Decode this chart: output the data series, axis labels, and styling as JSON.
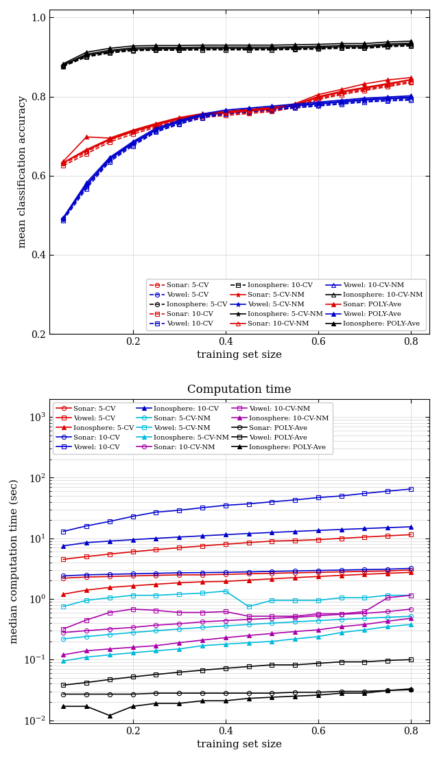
{
  "x": [
    0.05,
    0.1,
    0.15,
    0.2,
    0.25,
    0.3,
    0.35,
    0.4,
    0.45,
    0.5,
    0.55,
    0.6,
    0.65,
    0.7,
    0.75,
    0.8
  ],
  "acc": {
    "sonar_5cv": [
      0.63,
      0.66,
      0.69,
      0.71,
      0.725,
      0.74,
      0.75,
      0.755,
      0.76,
      0.765,
      0.775,
      0.795,
      0.808,
      0.818,
      0.828,
      0.838
    ],
    "sonar_10cv": [
      0.625,
      0.655,
      0.685,
      0.705,
      0.722,
      0.737,
      0.747,
      0.752,
      0.757,
      0.762,
      0.772,
      0.792,
      0.805,
      0.815,
      0.825,
      0.835
    ],
    "sonar_5cvnm": [
      0.633,
      0.663,
      0.691,
      0.711,
      0.728,
      0.743,
      0.753,
      0.758,
      0.763,
      0.768,
      0.778,
      0.798,
      0.811,
      0.821,
      0.831,
      0.842
    ],
    "sonar_10cvnm": [
      0.633,
      0.666,
      0.693,
      0.713,
      0.73,
      0.745,
      0.755,
      0.76,
      0.765,
      0.77,
      0.78,
      0.8,
      0.813,
      0.823,
      0.833,
      0.843
    ],
    "sonar_poly": [
      0.636,
      0.698,
      0.695,
      0.715,
      0.732,
      0.747,
      0.757,
      0.762,
      0.767,
      0.772,
      0.782,
      0.805,
      0.818,
      0.832,
      0.842,
      0.848
    ],
    "vowel_5cv": [
      0.49,
      0.572,
      0.638,
      0.678,
      0.712,
      0.732,
      0.748,
      0.758,
      0.763,
      0.768,
      0.773,
      0.778,
      0.783,
      0.788,
      0.791,
      0.794
    ],
    "vowel_10cv": [
      0.487,
      0.567,
      0.635,
      0.675,
      0.71,
      0.73,
      0.746,
      0.756,
      0.761,
      0.766,
      0.771,
      0.776,
      0.781,
      0.786,
      0.789,
      0.791
    ],
    "vowel_5cvnm": [
      0.492,
      0.575,
      0.641,
      0.681,
      0.715,
      0.735,
      0.751,
      0.761,
      0.766,
      0.771,
      0.776,
      0.781,
      0.786,
      0.791,
      0.794,
      0.797
    ],
    "vowel_10cvnm": [
      0.492,
      0.577,
      0.643,
      0.683,
      0.717,
      0.737,
      0.753,
      0.763,
      0.768,
      0.773,
      0.778,
      0.783,
      0.788,
      0.793,
      0.796,
      0.799
    ],
    "vowel_poly": [
      0.494,
      0.582,
      0.646,
      0.686,
      0.72,
      0.74,
      0.756,
      0.766,
      0.771,
      0.776,
      0.781,
      0.786,
      0.791,
      0.796,
      0.799,
      0.802
    ],
    "iono_5cv": [
      0.878,
      0.902,
      0.912,
      0.918,
      0.919,
      0.919,
      0.92,
      0.92,
      0.92,
      0.92,
      0.921,
      0.922,
      0.924,
      0.924,
      0.928,
      0.93
    ],
    "iono_10cv": [
      0.876,
      0.9,
      0.91,
      0.916,
      0.917,
      0.917,
      0.918,
      0.918,
      0.918,
      0.918,
      0.919,
      0.92,
      0.922,
      0.922,
      0.926,
      0.928
    ],
    "iono_5cvnm": [
      0.88,
      0.904,
      0.914,
      0.92,
      0.921,
      0.921,
      0.922,
      0.922,
      0.922,
      0.922,
      0.923,
      0.924,
      0.926,
      0.926,
      0.93,
      0.932
    ],
    "iono_10cvnm": [
      0.88,
      0.907,
      0.917,
      0.923,
      0.924,
      0.924,
      0.925,
      0.925,
      0.925,
      0.925,
      0.926,
      0.927,
      0.929,
      0.929,
      0.933,
      0.935
    ],
    "iono_poly": [
      0.883,
      0.912,
      0.922,
      0.928,
      0.929,
      0.929,
      0.93,
      0.93,
      0.93,
      0.93,
      0.931,
      0.932,
      0.934,
      0.934,
      0.938,
      0.94
    ]
  },
  "comp": {
    "sonar_5cv": [
      2.2,
      2.3,
      2.35,
      2.4,
      2.45,
      2.5,
      2.5,
      2.55,
      2.6,
      2.65,
      2.7,
      2.75,
      2.8,
      2.85,
      2.9,
      3.0
    ],
    "sonar_10cv": [
      2.4,
      2.5,
      2.55,
      2.6,
      2.65,
      2.7,
      2.72,
      2.75,
      2.8,
      2.85,
      2.9,
      2.95,
      3.0,
      3.05,
      3.1,
      3.2
    ],
    "sonar_5cvnm": [
      0.22,
      0.24,
      0.26,
      0.28,
      0.3,
      0.32,
      0.34,
      0.36,
      0.38,
      0.4,
      0.42,
      0.44,
      0.46,
      0.48,
      0.5,
      0.52
    ],
    "sonar_10cvnm": [
      0.28,
      0.3,
      0.32,
      0.34,
      0.37,
      0.39,
      0.42,
      0.44,
      0.46,
      0.48,
      0.5,
      0.53,
      0.56,
      0.58,
      0.62,
      0.68
    ],
    "sonar_poly": [
      0.027,
      0.027,
      0.027,
      0.027,
      0.028,
      0.028,
      0.028,
      0.028,
      0.028,
      0.028,
      0.029,
      0.029,
      0.03,
      0.03,
      0.031,
      0.032
    ],
    "vowel_5cv": [
      4.5,
      5.0,
      5.5,
      6.0,
      6.5,
      7.0,
      7.5,
      8.0,
      8.5,
      9.0,
      9.2,
      9.5,
      10.0,
      10.5,
      11.0,
      11.5
    ],
    "vowel_10cv": [
      13.0,
      16.0,
      19.0,
      23.0,
      27.0,
      29.0,
      32.0,
      35.0,
      37.0,
      40.0,
      43.0,
      47.0,
      50.0,
      55.0,
      60.0,
      65.0
    ],
    "vowel_5cvnm": [
      0.75,
      0.95,
      1.05,
      1.15,
      1.15,
      1.2,
      1.25,
      1.35,
      0.75,
      0.95,
      0.95,
      0.95,
      1.05,
      1.05,
      1.15,
      1.15
    ],
    "vowel_10cvnm": [
      0.32,
      0.45,
      0.6,
      0.68,
      0.65,
      0.6,
      0.6,
      0.62,
      0.52,
      0.52,
      0.52,
      0.57,
      0.57,
      0.62,
      1.05,
      1.15
    ],
    "vowel_poly": [
      0.038,
      0.042,
      0.047,
      0.052,
      0.057,
      0.062,
      0.067,
      0.072,
      0.077,
      0.082,
      0.082,
      0.087,
      0.092,
      0.092,
      0.097,
      0.1
    ],
    "iono_5cv": [
      1.2,
      1.4,
      1.55,
      1.65,
      1.75,
      1.85,
      1.92,
      1.95,
      2.05,
      2.15,
      2.25,
      2.35,
      2.45,
      2.55,
      2.65,
      2.75
    ],
    "iono_10cv": [
      7.5,
      8.5,
      9.0,
      9.5,
      10.0,
      10.5,
      11.0,
      11.5,
      12.0,
      12.5,
      13.0,
      13.5,
      14.0,
      14.5,
      15.0,
      15.5
    ],
    "iono_5cvnm": [
      0.095,
      0.11,
      0.12,
      0.13,
      0.14,
      0.15,
      0.17,
      0.18,
      0.19,
      0.2,
      0.22,
      0.24,
      0.28,
      0.31,
      0.35,
      0.38
    ],
    "iono_10cvnm": [
      0.12,
      0.14,
      0.15,
      0.16,
      0.17,
      0.19,
      0.21,
      0.23,
      0.25,
      0.27,
      0.29,
      0.31,
      0.35,
      0.38,
      0.43,
      0.48
    ],
    "iono_poly": [
      0.017,
      0.017,
      0.012,
      0.017,
      0.019,
      0.019,
      0.021,
      0.021,
      0.023,
      0.024,
      0.025,
      0.026,
      0.028,
      0.028,
      0.031,
      0.033
    ]
  },
  "colors": {
    "red": "#dd0000",
    "blue": "#0000cc",
    "black": "#000000",
    "cyan": "#00bbdd",
    "magenta": "#aa00aa"
  },
  "top_legend": {
    "row1": [
      "Sonar: 5-CV",
      "Vowel: 5-CV",
      "Ionosphere: 5-CV"
    ],
    "row2": [
      "Sonar: 10-CV",
      "Vowel: 10-CV",
      "Ionosphere: 10-CV"
    ],
    "row3": [
      "Sonar: 5-CV-NM",
      "Vowel: 5-CV-NM",
      "Ionosphere: 5-CV-NM"
    ],
    "row4": [
      "Sonar: 10-CV-NM",
      "Vowel: 10-CV-NM",
      "Ionosphere: 10-CV-NM"
    ],
    "row5": [
      "Sonar: POLY-Ave",
      "Vowel: POLY-Ave",
      "Ionosphere: POLY-Ave"
    ]
  },
  "bot_legend": {
    "row1": [
      "Sonar: 5-CV",
      "Vowel: 5-CV",
      "Ionosphere: 5-CV"
    ],
    "row2": [
      "Sonar: 10-CV",
      "Vowel: 10-CV",
      "Ionosphere: 10-CV"
    ],
    "row3": [
      "Sonar: 5-CV-NM",
      "Vowel: 5-CV-NM",
      "Ionosphere: 5-CV-NM"
    ],
    "row4": [
      "Sonar: 10-CV-NM",
      "Vowel: 10-CV-NM",
      "Ionosphere: 10-CV-NM"
    ],
    "row5": [
      "Sonar: POLY-Ave",
      "Vowel: POLY-Ave",
      "Ionosphere: POLY-Ave"
    ]
  }
}
